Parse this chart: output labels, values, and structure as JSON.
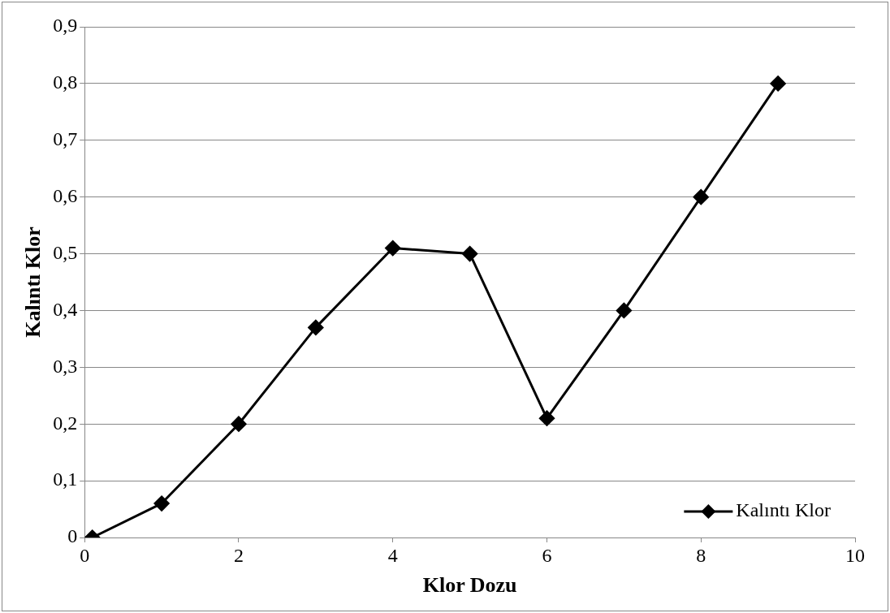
{
  "chart_data": {
    "type": "line",
    "xlabel": "Klor Dozu",
    "ylabel": "Kalıntı Klor",
    "x": [
      0.1,
      1,
      2,
      3,
      4,
      5,
      6,
      7,
      8,
      9
    ],
    "series": [
      {
        "name": "Kalıntı Klor",
        "color": "#000000",
        "values": [
          0,
          0.06,
          0.2,
          0.37,
          0.51,
          0.5,
          0.21,
          0.4,
          0.6,
          0.8
        ]
      }
    ],
    "xlim": [
      0,
      10
    ],
    "xticks": [
      0,
      2,
      4,
      6,
      8,
      10
    ],
    "ylim": [
      0,
      0.9
    ],
    "yticks": [
      {
        "value": 0,
        "label": "0"
      },
      {
        "value": 0.1,
        "label": "0,1"
      },
      {
        "value": 0.2,
        "label": "0,2"
      },
      {
        "value": 0.3,
        "label": "0,3"
      },
      {
        "value": 0.4,
        "label": "0,4"
      },
      {
        "value": 0.5,
        "label": "0,5"
      },
      {
        "value": 0.6,
        "label": "0,6"
      },
      {
        "value": 0.7,
        "label": "0,7"
      },
      {
        "value": 0.8,
        "label": "0,8"
      },
      {
        "value": 0.9,
        "label": "0,9"
      }
    ],
    "grid": "y",
    "legend": "bottom right",
    "marker": "diamond",
    "line_style": "solid"
  }
}
